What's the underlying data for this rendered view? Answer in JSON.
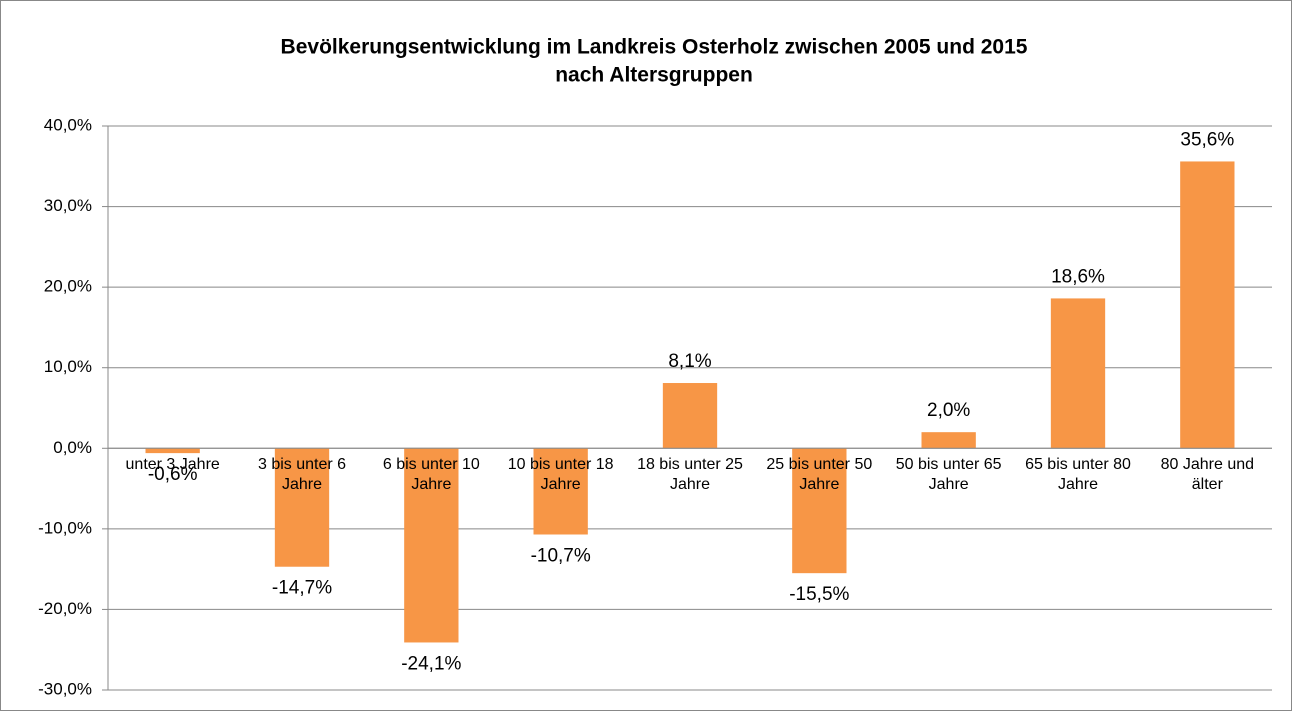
{
  "chart_data": {
    "type": "bar",
    "title": [
      "Bevölkerungsentwicklung im Landkreis Osterholz zwischen 2005 und 2015",
      "nach Altersgruppen"
    ],
    "categories": [
      "unter 3 Jahre",
      "3 bis unter 6 Jahre",
      "6 bis unter 10 Jahre",
      "10 bis unter 18 Jahre",
      "18 bis unter 25 Jahre",
      "25 bis unter 50 Jahre",
      "50 bis unter 65 Jahre",
      "65 bis unter 80 Jahre",
      "80 Jahre und älter"
    ],
    "values": [
      -0.6,
      -14.7,
      -24.1,
      -10.7,
      8.1,
      -15.5,
      2.0,
      18.6,
      35.6
    ],
    "value_labels": [
      "-0,6%",
      "-14,7%",
      "-24,1%",
      "-10,7%",
      "8,1%",
      "-15,5%",
      "2,0%",
      "18,6%",
      "35,6%"
    ],
    "color": "#f79646",
    "ylim": [
      -30,
      40
    ],
    "yticks": [
      {
        "value": -30,
        "label": "-30,0%"
      },
      {
        "value": -20,
        "label": "-20,0%"
      },
      {
        "value": -10,
        "label": "-10,0%"
      },
      {
        "value": 0,
        "label": "0,0%"
      },
      {
        "value": 10,
        "label": "10,0%"
      },
      {
        "value": 20,
        "label": "20,0%"
      },
      {
        "value": 30,
        "label": "30,0%"
      },
      {
        "value": 40,
        "label": "40,0%"
      }
    ],
    "grid": true
  }
}
